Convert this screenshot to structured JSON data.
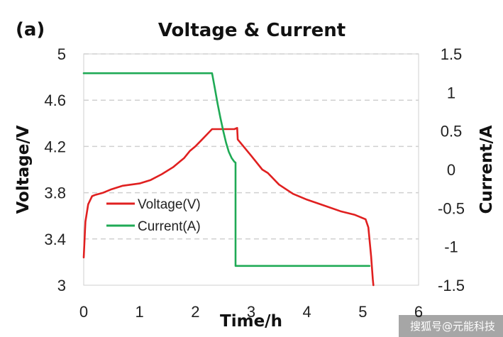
{
  "chart_data": {
    "type": "line",
    "panel_label": "(a)",
    "title": "Voltage & Current",
    "xlabel": "Time/h",
    "ylabel": "Voltage/V",
    "y2label": "Current/A",
    "xlim": [
      0,
      6
    ],
    "ylim": [
      3,
      5
    ],
    "y2lim": [
      -1.5,
      1.5
    ],
    "x_ticks": [
      "0",
      "1",
      "2",
      "3",
      "4",
      "5",
      "6"
    ],
    "y_ticks": [
      "3",
      "3.4",
      "3.8",
      "4.2",
      "4.6",
      "5"
    ],
    "y2_ticks": [
      "-1.5",
      "-1",
      "-0.5",
      "0",
      "0.5",
      "1",
      "1.5"
    ],
    "grid": "horizontal-dashed",
    "legend_position": "center-left",
    "series": [
      {
        "name": "Voltage(V)",
        "axis": "left",
        "color": "#e02020",
        "x": [
          0.0,
          0.03,
          0.08,
          0.15,
          0.2,
          0.35,
          0.5,
          0.7,
          1.0,
          1.2,
          1.4,
          1.6,
          1.7,
          1.8,
          1.9,
          2.0,
          2.1,
          2.2,
          2.3,
          2.5,
          2.7,
          2.75,
          2.76,
          3.0,
          3.2,
          3.3,
          3.5,
          3.75,
          4.0,
          4.3,
          4.6,
          4.85,
          4.95,
          5.05,
          5.1,
          5.15,
          5.18,
          5.19
        ],
        "y": [
          3.24,
          3.55,
          3.7,
          3.77,
          3.78,
          3.8,
          3.83,
          3.86,
          3.88,
          3.91,
          3.96,
          4.02,
          4.06,
          4.1,
          4.16,
          4.2,
          4.25,
          4.3,
          4.35,
          4.35,
          4.35,
          4.36,
          4.26,
          4.12,
          4.0,
          3.97,
          3.87,
          3.79,
          3.74,
          3.69,
          3.64,
          3.61,
          3.59,
          3.57,
          3.5,
          3.25,
          3.05,
          3.0
        ]
      },
      {
        "name": "Current(A)",
        "axis": "right",
        "color": "#1faa55",
        "x": [
          0.0,
          2.3,
          2.35,
          2.4,
          2.45,
          2.5,
          2.55,
          2.6,
          2.65,
          2.7,
          2.72,
          2.72,
          3.0,
          4.0,
          5.0,
          5.12
        ],
        "y": [
          1.25,
          1.25,
          1.05,
          0.85,
          0.67,
          0.5,
          0.35,
          0.23,
          0.15,
          0.1,
          0.09,
          -1.25,
          -1.25,
          -1.25,
          -1.25,
          -1.25
        ]
      }
    ]
  },
  "watermark": "搜狐号@元能科技"
}
